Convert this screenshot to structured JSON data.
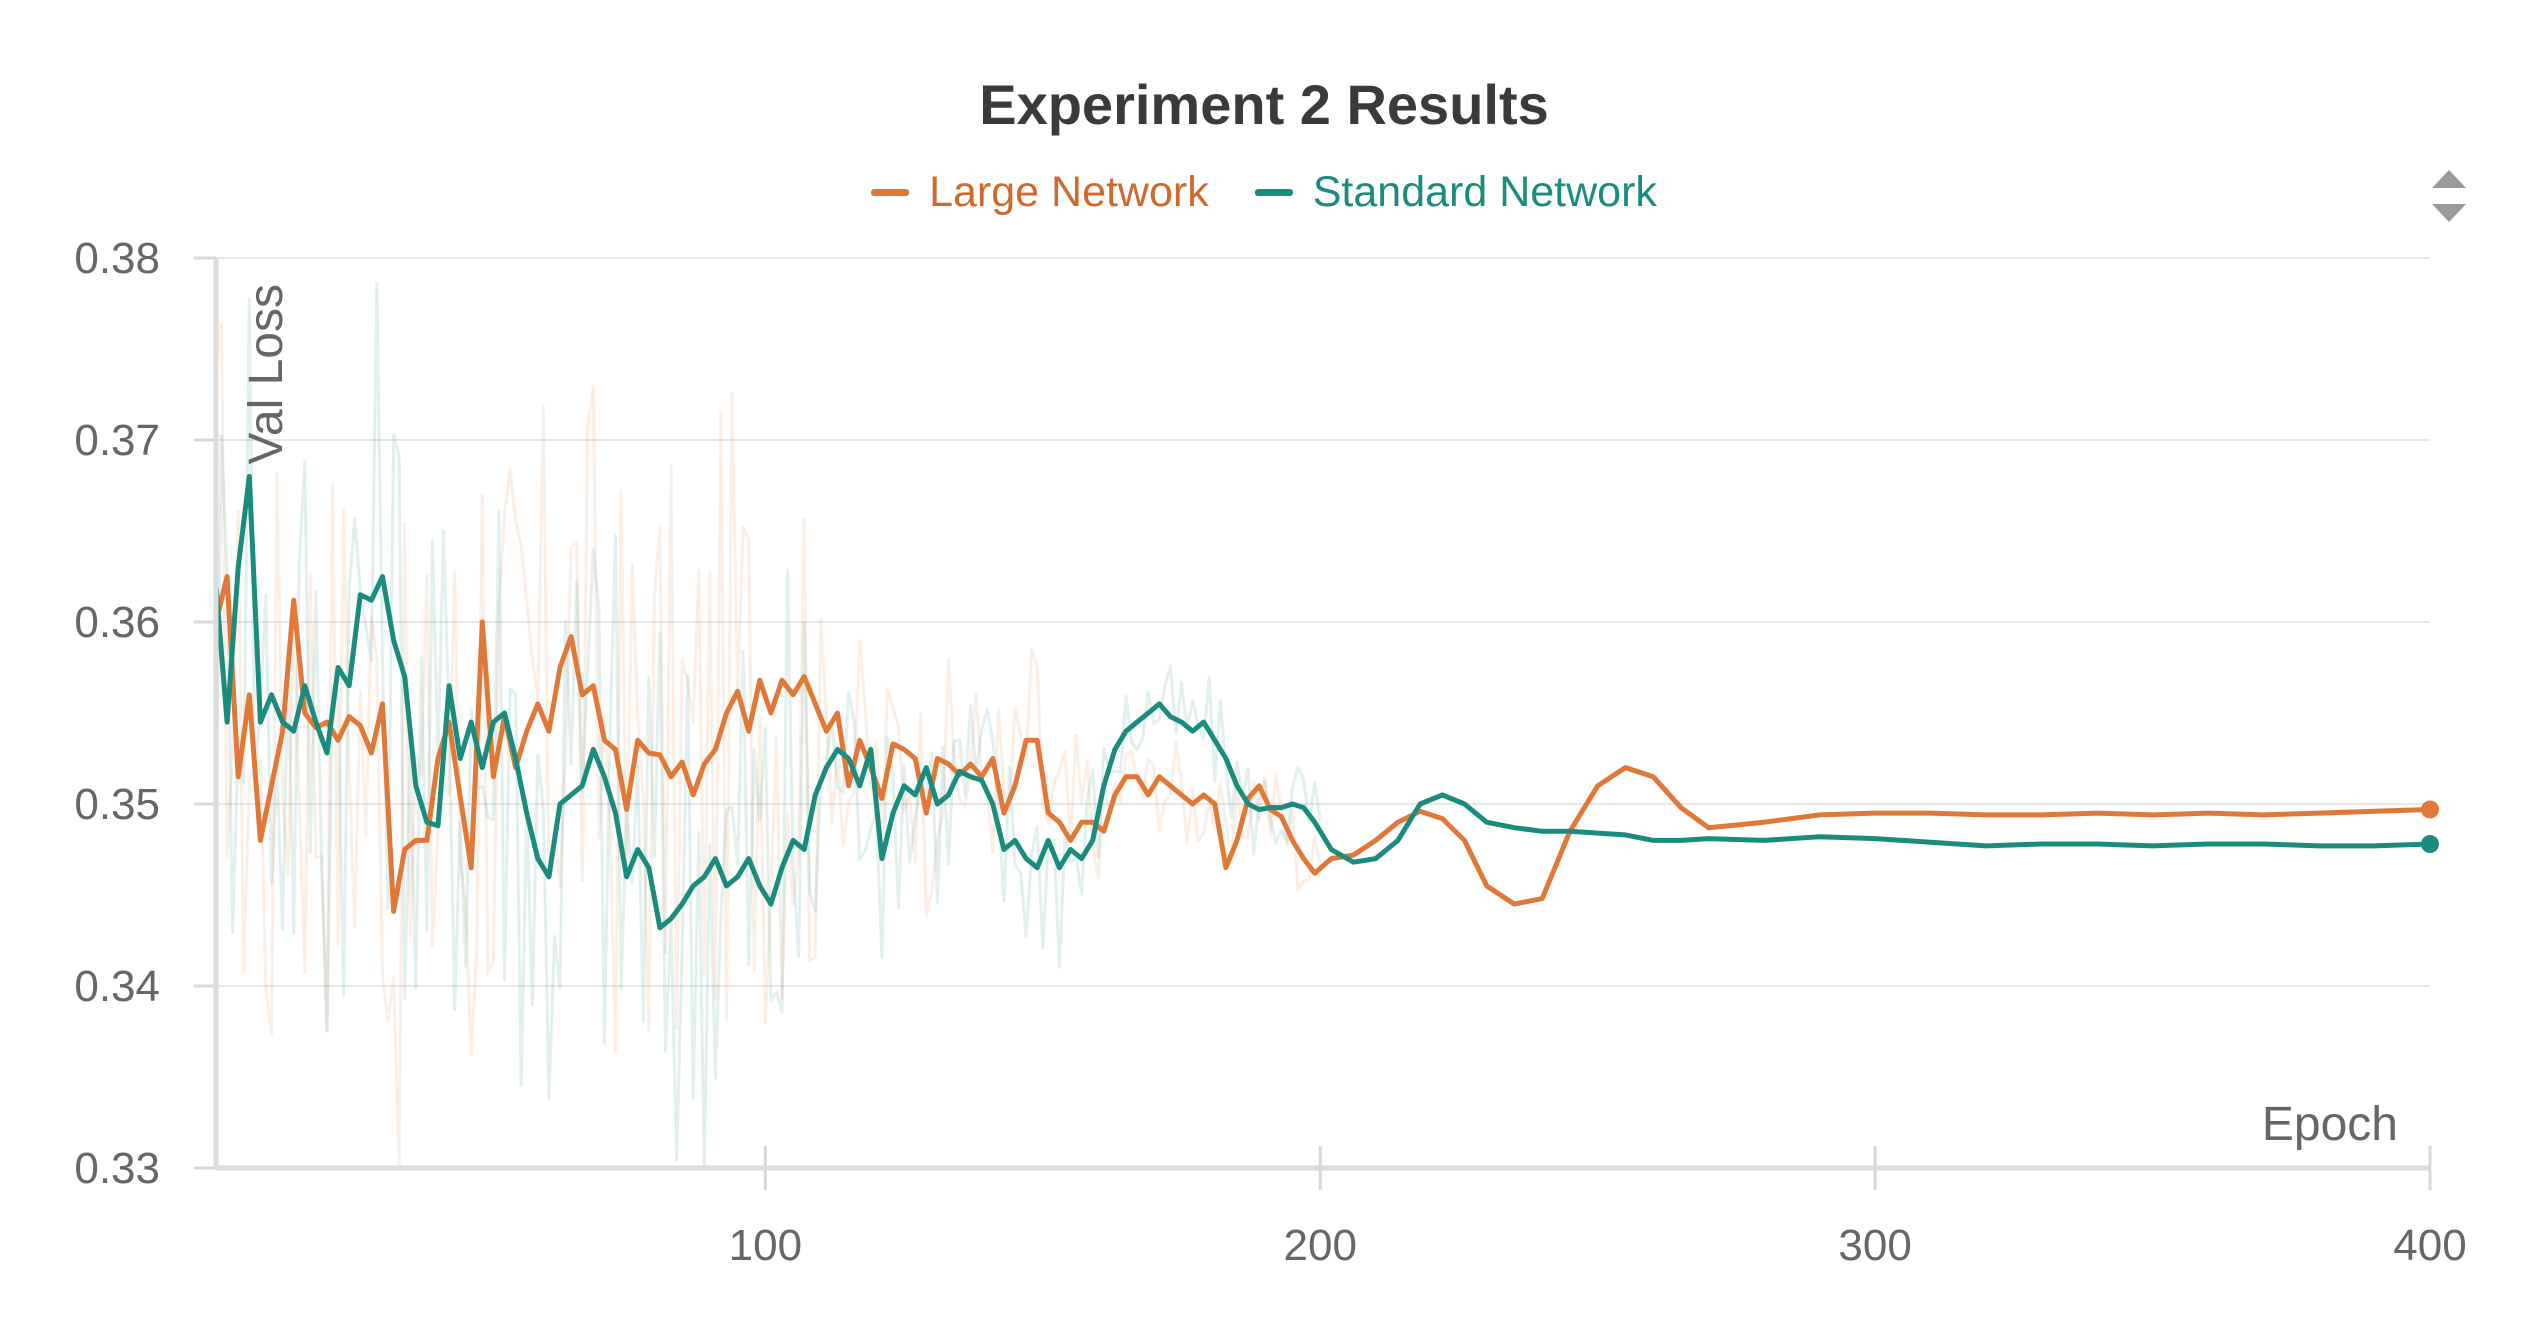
{
  "chart_data": {
    "type": "line",
    "title": "Experiment 2 Results",
    "xlabel": "Epoch",
    "ylabel": "Val Loss",
    "xlim": [
      1,
      400
    ],
    "ylim": [
      0.33,
      0.38
    ],
    "x_ticks": [
      100,
      200,
      300,
      400
    ],
    "x_tick_labels": [
      "100",
      "200",
      "300",
      "400"
    ],
    "y_ticks": [
      0.33,
      0.34,
      0.35,
      0.36,
      0.37,
      0.38
    ],
    "y_tick_labels": [
      "0.33",
      "0.34",
      "0.35",
      "0.36",
      "0.37",
      "0.38"
    ],
    "grid": true,
    "legend_position": "top-center",
    "smoothed": true,
    "series": [
      {
        "name": "Large Network",
        "color": "#e07838",
        "x": [
          1,
          3,
          5,
          7,
          9,
          11,
          13,
          15,
          17,
          19,
          21,
          23,
          25,
          27,
          29,
          31,
          33,
          35,
          37,
          39,
          41,
          43,
          45,
          47,
          49,
          51,
          53,
          55,
          57,
          59,
          61,
          63,
          65,
          67,
          69,
          71,
          73,
          75,
          77,
          79,
          81,
          83,
          85,
          87,
          89,
          91,
          93,
          95,
          97,
          99,
          101,
          103,
          105,
          107,
          109,
          111,
          113,
          115,
          117,
          119,
          121,
          123,
          125,
          127,
          129,
          131,
          133,
          135,
          137,
          139,
          141,
          143,
          145,
          147,
          149,
          151,
          153,
          155,
          157,
          159,
          161,
          163,
          165,
          167,
          169,
          171,
          173,
          175,
          177,
          179,
          181,
          183,
          185,
          187,
          189,
          191,
          193,
          195,
          197,
          199,
          202,
          206,
          210,
          214,
          218,
          222,
          226,
          230,
          235,
          240,
          245,
          250,
          255,
          260,
          265,
          270,
          280,
          290,
          300,
          310,
          320,
          330,
          340,
          350,
          360,
          370,
          380,
          390,
          400
        ],
        "values": [
          0.36,
          0.3625,
          0.3515,
          0.356,
          0.348,
          0.351,
          0.354,
          0.3612,
          0.355,
          0.3542,
          0.3545,
          0.3535,
          0.3548,
          0.3543,
          0.3528,
          0.3555,
          0.3441,
          0.3475,
          0.348,
          0.348,
          0.3525,
          0.3545,
          0.3504,
          0.3465,
          0.36,
          0.3515,
          0.3548,
          0.352,
          0.354,
          0.3555,
          0.354,
          0.3575,
          0.3592,
          0.356,
          0.3565,
          0.3535,
          0.353,
          0.3497,
          0.3535,
          0.3528,
          0.3527,
          0.3515,
          0.3523,
          0.3505,
          0.3522,
          0.353,
          0.355,
          0.3562,
          0.354,
          0.3568,
          0.355,
          0.3568,
          0.356,
          0.357,
          0.3555,
          0.354,
          0.355,
          0.351,
          0.3535,
          0.352,
          0.3503,
          0.3533,
          0.353,
          0.3525,
          0.3495,
          0.3525,
          0.3522,
          0.3516,
          0.3522,
          0.3515,
          0.3525,
          0.3495,
          0.351,
          0.3535,
          0.3535,
          0.3495,
          0.349,
          0.348,
          0.349,
          0.349,
          0.3485,
          0.3505,
          0.3515,
          0.3515,
          0.3505,
          0.3515,
          0.351,
          0.3505,
          0.35,
          0.3505,
          0.35,
          0.3465,
          0.348,
          0.3503,
          0.351,
          0.3497,
          0.3493,
          0.348,
          0.347,
          0.3462,
          0.347,
          0.3472,
          0.348,
          0.349,
          0.3496,
          0.3492,
          0.348,
          0.3455,
          0.3445,
          0.3448,
          0.3485,
          0.351,
          0.352,
          0.3515,
          0.3498,
          0.3487,
          0.349,
          0.3494,
          0.3495,
          0.3495,
          0.3494,
          0.3494,
          0.3495,
          0.3494,
          0.3495,
          0.3494,
          0.3495,
          0.3496,
          0.3497
        ]
      },
      {
        "name": "Standard Network",
        "color": "#1a8c7e",
        "x": [
          1,
          3,
          5,
          7,
          9,
          11,
          13,
          15,
          17,
          19,
          21,
          23,
          25,
          27,
          29,
          31,
          33,
          35,
          37,
          39,
          41,
          43,
          45,
          47,
          49,
          51,
          53,
          55,
          57,
          59,
          61,
          63,
          65,
          67,
          69,
          71,
          73,
          75,
          77,
          79,
          81,
          83,
          85,
          87,
          89,
          91,
          93,
          95,
          97,
          99,
          101,
          103,
          105,
          107,
          109,
          111,
          113,
          115,
          117,
          119,
          121,
          123,
          125,
          127,
          129,
          131,
          133,
          135,
          137,
          139,
          141,
          143,
          145,
          147,
          149,
          151,
          153,
          155,
          157,
          159,
          161,
          163,
          165,
          167,
          169,
          171,
          173,
          175,
          177,
          179,
          181,
          183,
          185,
          187,
          189,
          191,
          193,
          195,
          197,
          199,
          202,
          206,
          210,
          214,
          218,
          222,
          226,
          230,
          235,
          240,
          245,
          250,
          255,
          260,
          265,
          270,
          280,
          290,
          300,
          310,
          320,
          330,
          340,
          350,
          360,
          370,
          380,
          390,
          400
        ],
        "values": [
          0.362,
          0.3545,
          0.363,
          0.368,
          0.3545,
          0.356,
          0.3545,
          0.354,
          0.3565,
          0.3545,
          0.3528,
          0.3575,
          0.3565,
          0.3615,
          0.3612,
          0.3625,
          0.359,
          0.357,
          0.351,
          0.349,
          0.3488,
          0.3565,
          0.3525,
          0.3545,
          0.352,
          0.3545,
          0.355,
          0.3525,
          0.3495,
          0.347,
          0.346,
          0.35,
          0.3505,
          0.351,
          0.353,
          0.3515,
          0.3495,
          0.346,
          0.3475,
          0.3465,
          0.3432,
          0.3437,
          0.3445,
          0.3455,
          0.346,
          0.347,
          0.3455,
          0.346,
          0.347,
          0.3455,
          0.3445,
          0.3465,
          0.348,
          0.3475,
          0.3505,
          0.352,
          0.353,
          0.3525,
          0.351,
          0.353,
          0.347,
          0.3495,
          0.351,
          0.3505,
          0.352,
          0.35,
          0.3505,
          0.3518,
          0.3515,
          0.3513,
          0.35,
          0.3475,
          0.348,
          0.347,
          0.3465,
          0.348,
          0.3465,
          0.3475,
          0.347,
          0.348,
          0.351,
          0.353,
          0.354,
          0.3545,
          0.355,
          0.3555,
          0.3548,
          0.3545,
          0.354,
          0.3545,
          0.3535,
          0.3525,
          0.351,
          0.35,
          0.3497,
          0.3498,
          0.3498,
          0.35,
          0.3498,
          0.349,
          0.3475,
          0.3468,
          0.347,
          0.348,
          0.35,
          0.3505,
          0.35,
          0.349,
          0.3487,
          0.3485,
          0.3485,
          0.3484,
          0.3483,
          0.348,
          0.348,
          0.3481,
          0.348,
          0.3482,
          0.3481,
          0.3479,
          0.3477,
          0.3478,
          0.3478,
          0.3477,
          0.3478,
          0.3478,
          0.3477,
          0.3477,
          0.3478
        ]
      }
    ]
  },
  "ui": {
    "title": "Experiment 2 Results",
    "legend": [
      "Large Network",
      "Standard Network"
    ],
    "xlabel": "Epoch",
    "ylabel": "Val Loss",
    "sort_icon": "sort-updown-icon",
    "colors": {
      "large": "#e07838",
      "standard": "#1a8c7e",
      "grid": "#e6e6e6",
      "axis": "#dcdcdc",
      "text": "#666666",
      "title": "#3a3a3a"
    }
  }
}
